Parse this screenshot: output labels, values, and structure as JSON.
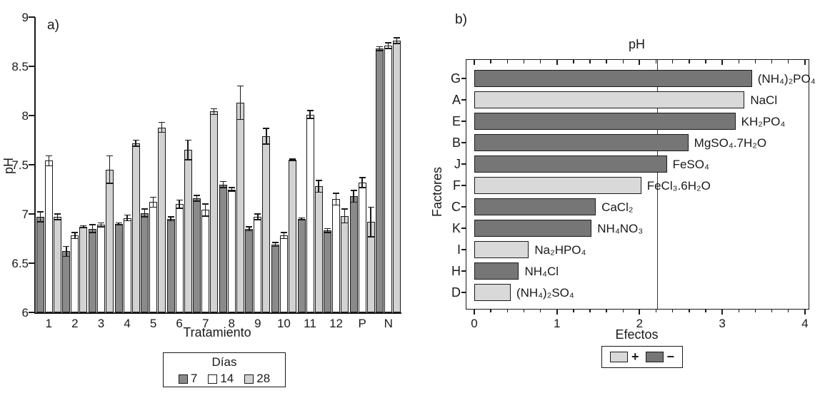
{
  "chart_data": [
    {
      "id": "a",
      "type": "bar",
      "panel_label": "a)",
      "xlabel": "Tratamiento",
      "ylabel": "pH",
      "ylim": [
        6,
        9
      ],
      "yticks": [
        6,
        6.5,
        7,
        7.5,
        8,
        8.5,
        9
      ],
      "grid": false,
      "legend_title": "Días",
      "legend_position": "bottom",
      "categories": [
        "1",
        "2",
        "3",
        "4",
        "5",
        "6",
        "7",
        "8",
        "9",
        "10",
        "11",
        "12",
        "P",
        "N"
      ],
      "series": [
        {
          "name": "7",
          "color": "#8a8a8a",
          "values": [
            6.97,
            6.62,
            6.85,
            6.9,
            7.01,
            6.95,
            7.16,
            7.3,
            6.85,
            6.69,
            6.95,
            6.83,
            7.18,
            8.68
          ],
          "errors": [
            0.05,
            0.05,
            0.04,
            0.01,
            0.04,
            0.02,
            0.03,
            0.03,
            0.02,
            0.02,
            0.01,
            0.02,
            0.06,
            0.02
          ]
        },
        {
          "name": "14",
          "color": "#ffffff",
          "values": [
            7.54,
            6.78,
            6.89,
            6.96,
            7.12,
            7.1,
            7.04,
            7.25,
            6.97,
            6.78,
            8.01,
            7.15,
            7.32,
            8.71
          ],
          "errors": [
            0.05,
            0.03,
            0.02,
            0.03,
            0.05,
            0.04,
            0.06,
            0.02,
            0.03,
            0.03,
            0.04,
            0.06,
            0.05,
            0.03
          ]
        },
        {
          "name": "28",
          "color": "#d2d2d2",
          "values": [
            6.97,
            6.87,
            7.45,
            7.72,
            7.88,
            7.65,
            8.04,
            8.13,
            7.79,
            7.55,
            7.28,
            6.98,
            6.92,
            8.76
          ],
          "errors": [
            0.03,
            0.01,
            0.14,
            0.03,
            0.05,
            0.1,
            0.03,
            0.17,
            0.08,
            0.01,
            0.06,
            0.07,
            0.15,
            0.03
          ]
        }
      ]
    },
    {
      "id": "b",
      "type": "bar-horizontal",
      "panel_label": "b)",
      "title": "pH",
      "xlabel": "Efectos",
      "ylabel": "Factores",
      "xlim": [
        0,
        4
      ],
      "xticks": [
        0,
        1,
        2,
        3,
        4
      ],
      "minor_tick_step": 0.2,
      "reference_line_x": 2.22,
      "categories": [
        "G",
        "A",
        "E",
        "B",
        "J",
        "F",
        "C",
        "K",
        "I",
        "H",
        "D"
      ],
      "values": [
        3.36,
        3.27,
        3.16,
        2.59,
        2.33,
        2.02,
        1.47,
        1.42,
        0.66,
        0.54,
        0.44
      ],
      "signs": [
        "minus",
        "plus",
        "minus",
        "minus",
        "minus",
        "plus",
        "minus",
        "minus",
        "plus",
        "minus",
        "plus"
      ],
      "bar_labels": [
        "(NH₄)₂PO₄",
        "NaCl",
        "KH₂PO₄",
        "MgSO₄.7H₂O",
        "FeSO₄",
        "FeCl₃.6H₂O",
        "CaCl₂",
        "NH₄NO₃",
        "Na₂HPO₄",
        "NH₄Cl",
        "(NH₄)₂SO₄"
      ],
      "colors": {
        "plus": "#d9d9d9",
        "minus": "#767676"
      },
      "legend": [
        {
          "label": "+",
          "sign": "plus"
        },
        {
          "label": "−",
          "sign": "minus"
        }
      ]
    }
  ]
}
